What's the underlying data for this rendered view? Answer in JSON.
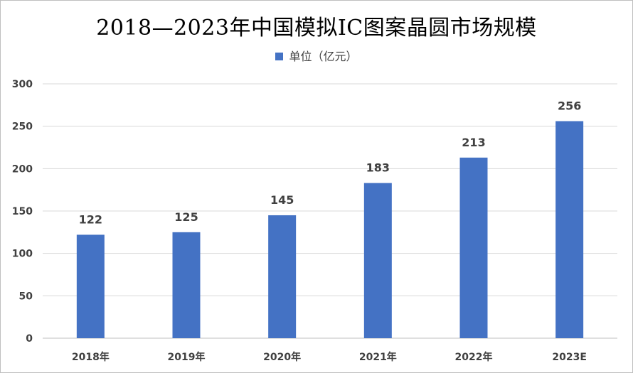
{
  "chart_data": {
    "type": "bar",
    "title": "2018—2023年中国模拟IC图案晶圆市场规模",
    "legend": {
      "series_name": "单位（亿元）",
      "position": "top"
    },
    "categories": [
      "2018年",
      "2019年",
      "2020年",
      "2021年",
      "2022年",
      "2023E"
    ],
    "series": [
      {
        "name": "单位（亿元）",
        "values": [
          122,
          125,
          145,
          183,
          213,
          256
        ],
        "color": "#4472c4"
      }
    ],
    "ylim": [
      0,
      300
    ],
    "yticks": [
      "0",
      "50",
      "100",
      "150",
      "200",
      "250",
      "300"
    ],
    "grid": true,
    "data_labels": [
      "122",
      "125",
      "145",
      "183",
      "213",
      "256"
    ]
  }
}
